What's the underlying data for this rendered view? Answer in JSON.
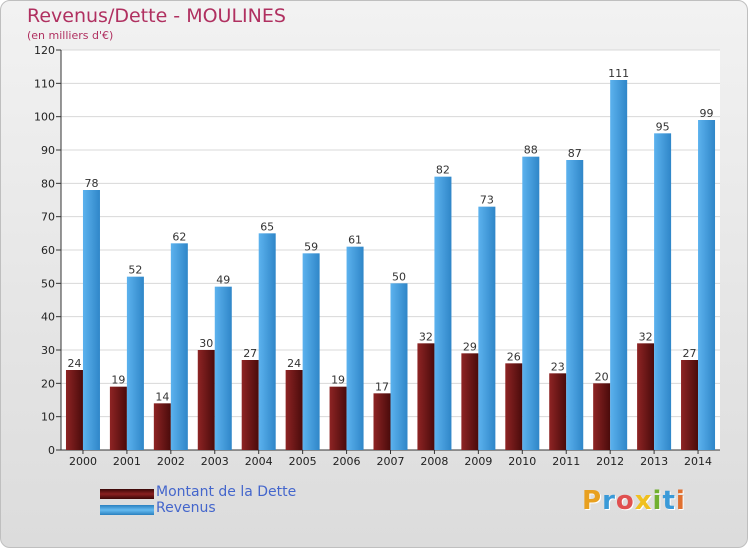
{
  "chart_data": {
    "type": "bar",
    "title": "Revenus/Dette - MOULINES",
    "subtitle": "(en milliers d'€)",
    "categories": [
      "2000",
      "2001",
      "2002",
      "2003",
      "2004",
      "2005",
      "2006",
      "2007",
      "2008",
      "2009",
      "2010",
      "2011",
      "2012",
      "2013",
      "2014"
    ],
    "series": [
      {
        "name": "Montant de la Dette",
        "color": "#7a1a1a",
        "values": [
          24,
          19,
          14,
          30,
          27,
          24,
          19,
          17,
          32,
          29,
          26,
          23,
          20,
          32,
          27
        ]
      },
      {
        "name": "Revenus",
        "color": "#4ba3e3",
        "values": [
          78,
          52,
          62,
          49,
          65,
          59,
          61,
          50,
          82,
          73,
          88,
          87,
          111,
          95,
          99
        ]
      }
    ],
    "ylim": [
      0,
      120
    ],
    "yticks": [
      0,
      10,
      20,
      30,
      40,
      50,
      60,
      70,
      80,
      90,
      100,
      110,
      120
    ],
    "grid": true,
    "legend_position": "bottom-left"
  },
  "legend": {
    "debt_label": "Montant de la Dette",
    "revenue_label": "Revenus"
  },
  "logo_text": "Proxiti",
  "colors": {
    "title": "#b03060",
    "legend_text": "#4466cc",
    "debt_bar": "#7a1a1a",
    "revenue_bar": "#4ba3e3"
  }
}
